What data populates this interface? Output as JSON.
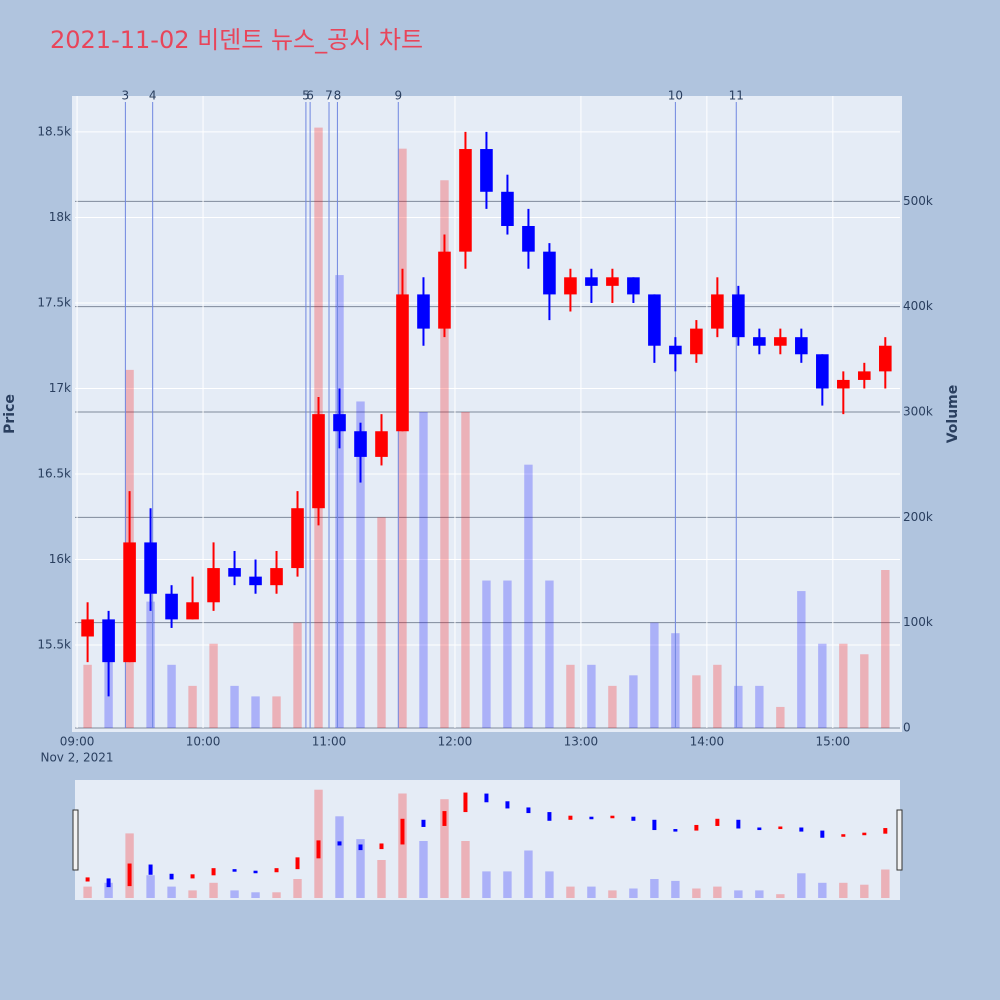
{
  "chart_data": {
    "type": "candlestick",
    "title": "2021-11-02 비덴트 뉴스_공시 차트",
    "x_axis_label": "Nov 2, 2021",
    "y_axis_label": "Price",
    "y2_axis_label": "Volume",
    "x": [
      "09:00",
      "09:10",
      "09:20",
      "09:30",
      "09:40",
      "09:50",
      "10:00",
      "10:10",
      "10:20",
      "10:30",
      "10:40",
      "10:50",
      "11:00",
      "11:10",
      "11:20",
      "11:30",
      "11:40",
      "11:50",
      "12:00",
      "12:10",
      "12:20",
      "12:30",
      "12:40",
      "12:50",
      "13:00",
      "13:10",
      "13:20",
      "13:30",
      "13:40",
      "13:50",
      "14:00",
      "14:10",
      "14:20",
      "14:30",
      "14:40",
      "14:50",
      "15:00",
      "15:10",
      "15:20"
    ],
    "open": [
      15550,
      15650,
      15400,
      16100,
      15800,
      15650,
      15750,
      15950,
      15900,
      15850,
      15950,
      16300,
      16850,
      16750,
      16600,
      16750,
      17550,
      17350,
      17800,
      18400,
      18150,
      17950,
      17800,
      17550,
      17650,
      17600,
      17650,
      17550,
      17250,
      17200,
      17350,
      17550,
      17300,
      17250,
      17300,
      17200,
      17000,
      17050,
      17100
    ],
    "high": [
      15750,
      15700,
      16400,
      16300,
      15850,
      15900,
      16100,
      16050,
      16000,
      16050,
      16400,
      16950,
      17000,
      16800,
      16850,
      17700,
      17650,
      17900,
      18500,
      18500,
      18250,
      18050,
      17850,
      17700,
      17700,
      17700,
      17650,
      17550,
      17300,
      17400,
      17650,
      17600,
      17350,
      17350,
      17350,
      17200,
      17100,
      17150,
      17300
    ],
    "low": [
      15400,
      15200,
      15400,
      15700,
      15600,
      15650,
      15700,
      15850,
      15800,
      15800,
      15900,
      16200,
      16650,
      16450,
      16550,
      16750,
      17250,
      17300,
      17700,
      18050,
      17900,
      17700,
      17400,
      17450,
      17500,
      17500,
      17500,
      17150,
      17100,
      17150,
      17300,
      17250,
      17200,
      17200,
      17150,
      16900,
      16850,
      17000,
      17000
    ],
    "close": [
      15650,
      15400,
      16100,
      15800,
      15650,
      15750,
      15950,
      15900,
      15850,
      15950,
      16300,
      16850,
      16750,
      16600,
      16750,
      17550,
      17350,
      17800,
      18400,
      18150,
      17950,
      17800,
      17550,
      17650,
      17600,
      17650,
      17550,
      17250,
      17200,
      17350,
      17550,
      17300,
      17250,
      17300,
      17200,
      17000,
      17050,
      17100,
      17250
    ],
    "volume": [
      60000,
      80000,
      340000,
      120000,
      60000,
      40000,
      80000,
      40000,
      30000,
      30000,
      100000,
      570000,
      430000,
      310000,
      200000,
      550000,
      300000,
      520000,
      300000,
      140000,
      140000,
      250000,
      140000,
      60000,
      60000,
      40000,
      50000,
      100000,
      90000,
      50000,
      60000,
      40000,
      40000,
      20000,
      130000,
      80000,
      80000,
      70000,
      150000
    ],
    "increasing_color": "#ff0000",
    "decreasing_color": "#0000ff",
    "xlim": [
      "08:59",
      "15:32"
    ],
    "xticks": [
      "09:00",
      "10:00",
      "11:00",
      "12:00",
      "13:00",
      "14:00",
      "15:00"
    ],
    "ylim": [
      15015,
      18710
    ],
    "yticks": [
      {
        "value": 15500,
        "label": "15.5k"
      },
      {
        "value": 16000,
        "label": "16k"
      },
      {
        "value": 16500,
        "label": "16.5k"
      },
      {
        "value": 17000,
        "label": "17k"
      },
      {
        "value": 17500,
        "label": "17.5k"
      },
      {
        "value": 18000,
        "label": "18k"
      },
      {
        "value": 18500,
        "label": "18.5k"
      }
    ],
    "y2lim": [
      0,
      600000
    ],
    "y2ticks": [
      0,
      {
        "value": 100000,
        "label": "100k"
      },
      {
        "value": 200000,
        "label": "200k"
      },
      {
        "value": 300000,
        "label": "300k"
      },
      {
        "value": 400000,
        "label": "400k"
      },
      {
        "value": 500000,
        "label": "500k"
      }
    ],
    "news": [
      {
        "x": "09:23",
        "label": "3"
      },
      {
        "x": "09:36",
        "label": "4"
      },
      {
        "x": "10:49",
        "label": "5"
      },
      {
        "x": "10:51",
        "label": "6"
      },
      {
        "x": "11:00",
        "label": "7"
      },
      {
        "x": "11:04",
        "label": "8"
      },
      {
        "x": "11:33",
        "label": "9"
      },
      {
        "x": "13:45",
        "label": "10"
      },
      {
        "x": "14:14",
        "label": "11"
      }
    ],
    "grid": true,
    "range_slider": true
  }
}
